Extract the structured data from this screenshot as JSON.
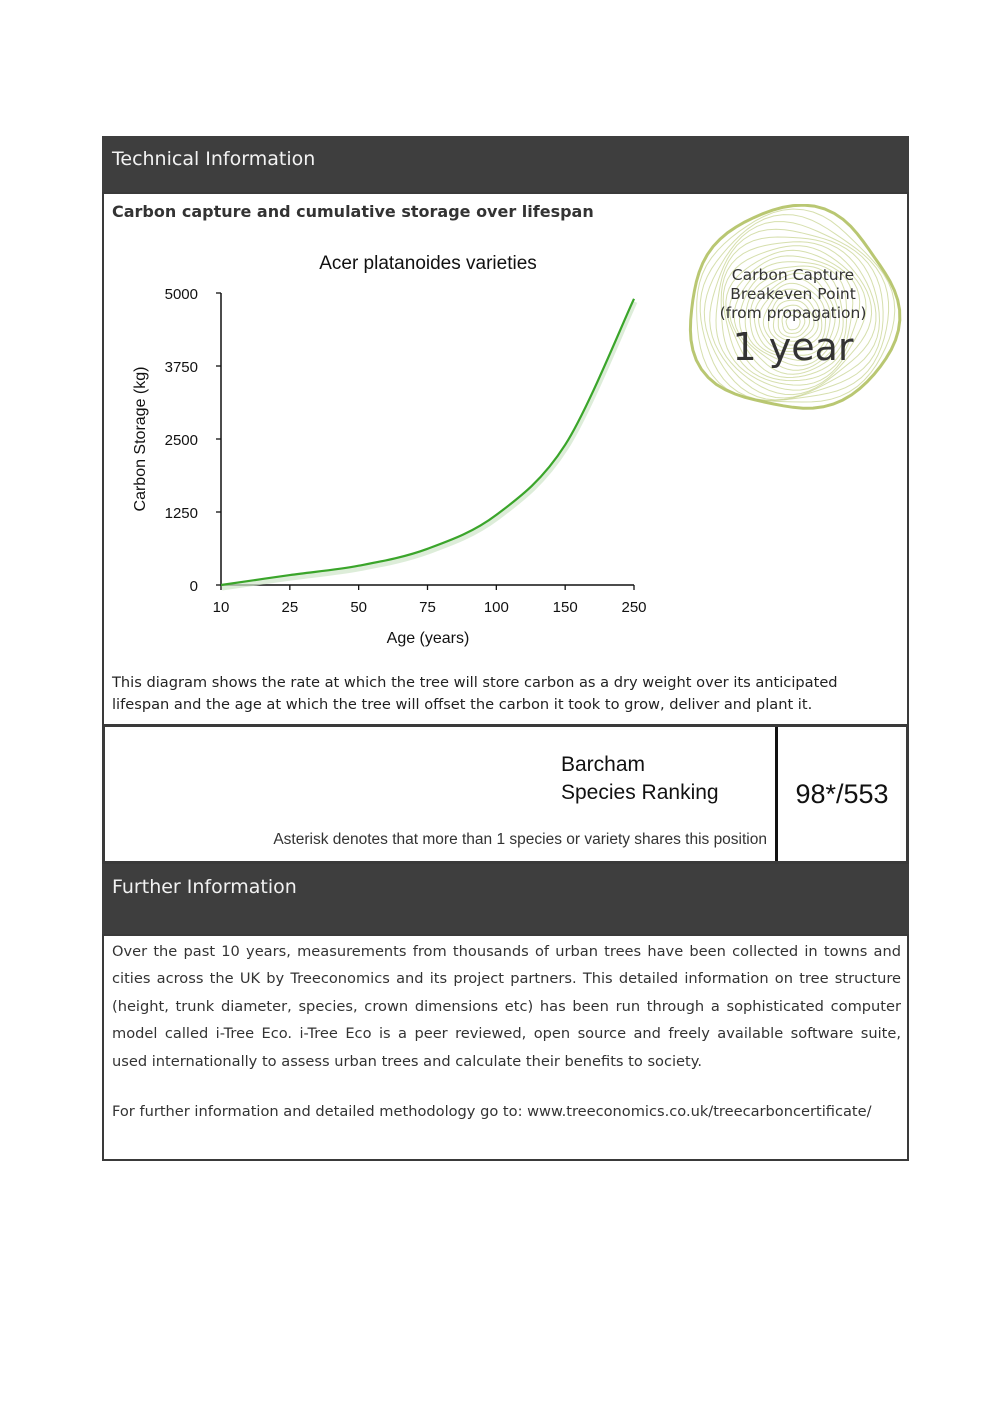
{
  "technical": {
    "title": "Technical Information",
    "subtitle": "Carbon capture and cumulative storage over lifespan",
    "caption_lines": [
      "This diagram shows the rate at which the tree will store carbon as a dry weight over its anticipated",
      "lifespan and the age at which the tree will offset the carbon it took to grow, deliver and plant it."
    ]
  },
  "badge": {
    "line1": "Carbon Capture",
    "line2": "Breakeven Point",
    "line3": "(from propagation)",
    "value": "1 year",
    "ring_color": "#b5c46a"
  },
  "ranking": {
    "label_line1": "Barcham",
    "label_line2": "Species Ranking",
    "value": "98*/553",
    "note": "Asterisk denotes that more than 1 species or variety shares this position"
  },
  "further": {
    "title": "Further Information",
    "lines": [
      "Over the past 10 years, measurements from thousands of urban trees have been collected in towns and",
      "cities across the UK by Treeconomics and its project partners. This detailed information on tree structure",
      "(height, trunk diameter, species, crown dimensions etc) has been run through a sophisticated computer",
      "model called i-Tree Eco. i-Tree Eco is a peer reviewed, open source and freely available software suite,"
    ],
    "last_line": "used internationally to assess urban trees and calculate their benefits to society.",
    "link_line": "For further information and detailed methodology go to: www.treeconomics.co.uk/treecarboncertificate/"
  },
  "chart_data": {
    "type": "line",
    "title": "Acer platanoides varieties",
    "xlabel": "Age (years)",
    "ylabel": "Carbon Storage (kg)",
    "x_ticks": [
      "10",
      "25",
      "50",
      "75",
      "100",
      "150",
      "250"
    ],
    "y_ticks": [
      "0",
      "1250",
      "2500",
      "3750",
      "5000"
    ],
    "ylim": [
      0,
      5000
    ],
    "x_scale": "categorical (equal spacing per tick)",
    "grid": false,
    "series_color": "#3aa52a",
    "series": [
      {
        "x": [
          "10",
          "25",
          "50",
          "75",
          "100",
          "150",
          "250"
        ],
        "values": [
          0,
          170,
          330,
          620,
          1200,
          2400,
          4900
        ]
      }
    ]
  }
}
